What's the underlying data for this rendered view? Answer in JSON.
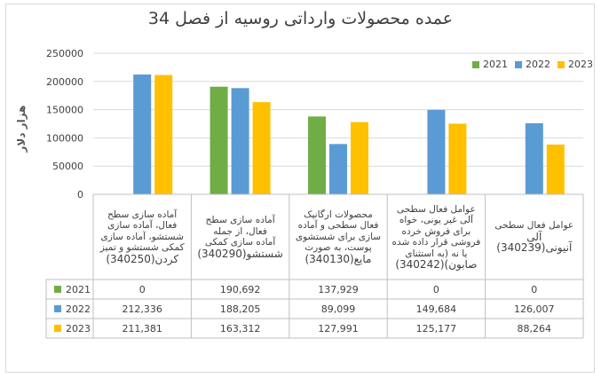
{
  "chart_data": {
    "type": "bar",
    "title": "عمده محصولات وارداتی روسیه از فصل 34",
    "ylabel": "هزار دلار",
    "ylim": [
      0,
      250000
    ],
    "yticks": [
      "0",
      "50000",
      "100000",
      "150000",
      "200000",
      "250000"
    ],
    "legend_position": "top-right",
    "grid": true,
    "categories": [
      {
        "lines": [
          "آماده سازی سطح",
          "فعال، آماده سازی",
          "شستشو، آماده سازی",
          "کمکی شستشو و تمیز",
          "کردن(340250)"
        ]
      },
      {
        "lines": [
          "آماده سازی سطح",
          "فعال، از جمله",
          "آماده سازی کمکی",
          "شستشو(340290)"
        ]
      },
      {
        "lines": [
          "محصولات ارگانیک",
          "فعال سطحی و آماده",
          "سازی برای شستشوی",
          "پوست، به صورت",
          "مایع(340130)"
        ]
      },
      {
        "lines": [
          "عوامل فعال سطحی",
          "آلی غیر یونی، خواه",
          "برای فروش خرده",
          "فروشی قرار داده شده",
          "یا نه (به استثنای",
          "صابون)(340242)"
        ]
      },
      {
        "lines": [
          "عوامل فعال سطحی",
          "آلی آنیونی(340239)"
        ]
      }
    ],
    "series": [
      {
        "name": "2021",
        "color": "#70ad47",
        "values": [
          0,
          190692,
          137929,
          0,
          0
        ],
        "labels": [
          "0",
          "190,692",
          "137,929",
          "0",
          "0"
        ]
      },
      {
        "name": "2022",
        "color": "#5b9bd5",
        "values": [
          212336,
          188205,
          89099,
          149684,
          126007
        ],
        "labels": [
          "212,336",
          "188,205",
          "89,099",
          "149,684",
          "126,007"
        ]
      },
      {
        "name": "2023",
        "color": "#ffc000",
        "values": [
          211381,
          163312,
          127991,
          125177,
          88264
        ],
        "labels": [
          "211,381",
          "163,312",
          "127,991",
          "125,177",
          "88,264"
        ]
      }
    ]
  }
}
